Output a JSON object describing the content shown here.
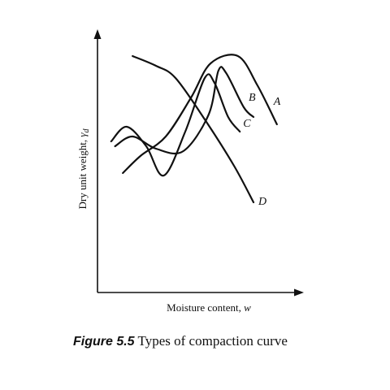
{
  "figure": {
    "number": "Figure 5.5",
    "caption": "Types of compaction curve"
  },
  "chart_data": {
    "type": "line",
    "title": "",
    "xlabel": "Moisture content, ",
    "xlabel_symbol": "w",
    "ylabel": "Dry unit weight, ",
    "ylabel_symbol": "γ",
    "ylabel_subscript": "d",
    "grid": false,
    "legend": "none",
    "axis_ticks": false,
    "xlim": [
      0,
      100
    ],
    "ylim": [
      0,
      100
    ],
    "series": [
      {
        "name": "A",
        "x": [
          13,
          22,
          35,
          48,
          58,
          72,
          82,
          92
        ],
        "y": [
          49,
          56,
          64,
          80,
          94,
          97,
          85,
          69
        ]
      },
      {
        "name": "B",
        "x": [
          9,
          18,
          30,
          44,
          57,
          62,
          66,
          75,
          80
        ],
        "y": [
          60,
          64,
          59,
          58,
          73,
          91,
          90,
          76,
          72
        ]
      },
      {
        "name": "C",
        "x": [
          7,
          15,
          25,
          34,
          45,
          55,
          60,
          67,
          73
        ],
        "y": [
          62,
          68,
          60,
          48,
          66,
          88,
          86,
          72,
          66
        ]
      },
      {
        "name": "D",
        "x": [
          18,
          30,
          40,
          55,
          70,
          80
        ],
        "y": [
          97,
          93,
          88,
          71,
          52,
          37
        ]
      }
    ]
  }
}
